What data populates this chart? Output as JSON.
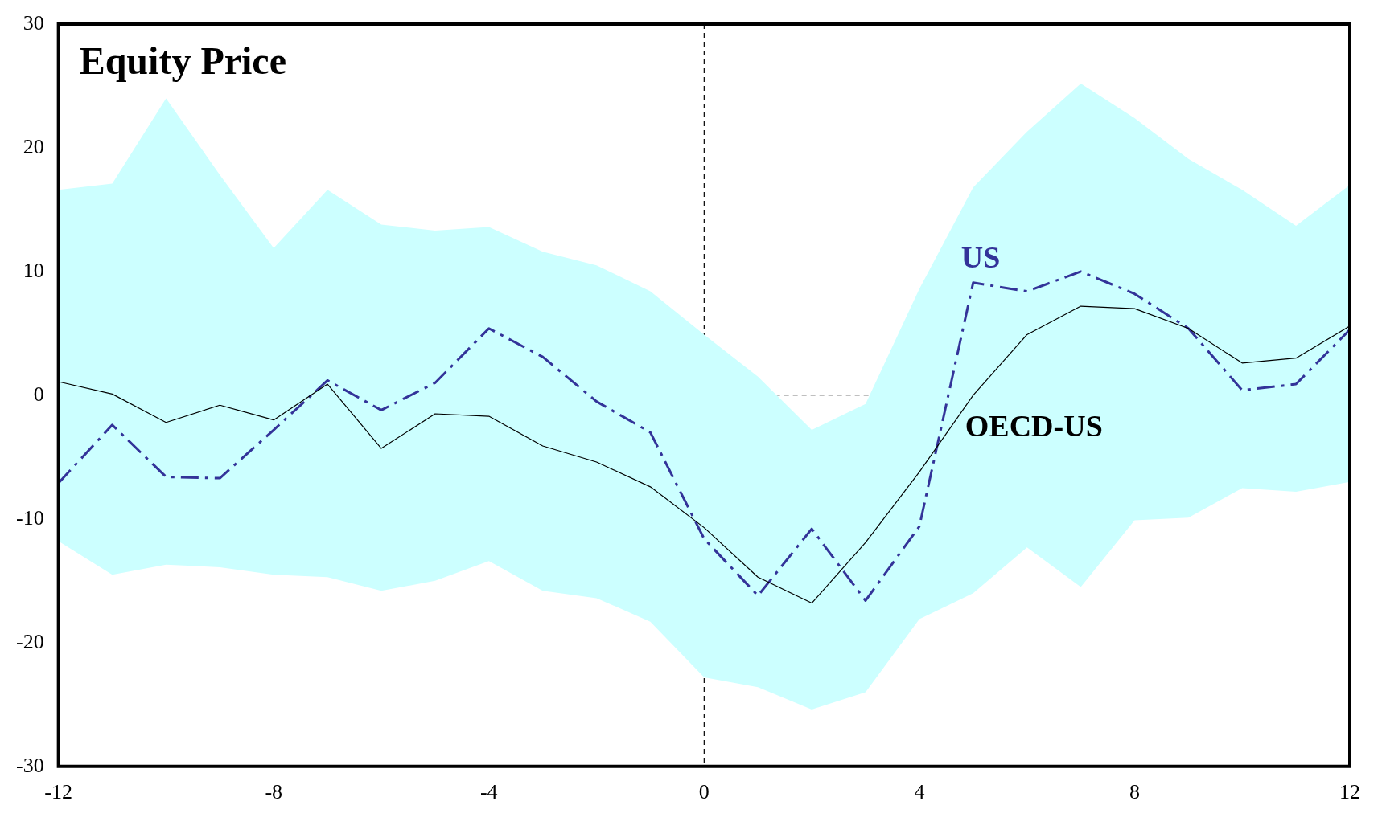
{
  "chart_data": {
    "type": "line",
    "title": "Equity Price",
    "x": [
      -12,
      -11,
      -10,
      -9,
      -8,
      -7,
      -6,
      -5,
      -4,
      -3,
      -2,
      -1,
      0,
      1,
      2,
      3,
      4,
      5,
      6,
      7,
      8,
      9,
      10,
      11,
      12
    ],
    "series": [
      {
        "name": "OECD-US",
        "color": "#000000",
        "line_style": "solid",
        "values": [
          1.1,
          0.1,
          -2.2,
          -0.8,
          -2,
          0.9,
          -4.3,
          -1.5,
          -1.7,
          -4.1,
          -5.4,
          -7.4,
          -10.7,
          -14.7,
          -16.8,
          -11.9,
          -6.2,
          0,
          4.9,
          7.2,
          7,
          5.4,
          2.6,
          3,
          5.6
        ],
        "upper": [
          16.6,
          17.1,
          24,
          17.8,
          11.9,
          16.6,
          13.8,
          13.3,
          13.6,
          11.6,
          10.5,
          8.4,
          4.9,
          1.5,
          -2.8,
          -0.7,
          8.6,
          16.8,
          21.3,
          25.2,
          22.4,
          19.1,
          16.6,
          13.7,
          17
        ],
        "lower": [
          -11.8,
          -14.5,
          -13.7,
          -13.9,
          -14.5,
          -14.7,
          -15.8,
          -15,
          -13.4,
          -15.8,
          -16.4,
          -18.3,
          -22.8,
          -23.6,
          -25.4,
          -24,
          -18.1,
          -16,
          -12.3,
          -15.5,
          -10.1,
          -9.9,
          -7.5,
          -7.8,
          -7
        ]
      },
      {
        "name": "US",
        "color": "#333399",
        "line_style": "dashed",
        "values": [
          -7.1,
          -2.4,
          -6.6,
          -6.7,
          -2.8,
          1.2,
          -1.2,
          1,
          5.4,
          3.1,
          -0.5,
          -3,
          -11.6,
          -16.2,
          -10.8,
          -16.6,
          -10.6,
          9.1,
          8.4,
          10,
          8.2,
          5.4,
          0.4,
          0.9,
          5.3
        ]
      }
    ],
    "xlim": [
      -12,
      12
    ],
    "xticks": [
      -12,
      -8,
      -4,
      0,
      4,
      8,
      12
    ],
    "ylim": [
      -30,
      30
    ],
    "yticks": [
      -30,
      -20,
      -10,
      0,
      10,
      20,
      30
    ],
    "ref_lines": [
      {
        "axis": "x",
        "value": 0,
        "color": "#000000",
        "line_style": "dashed"
      },
      {
        "axis": "y",
        "value": 0,
        "color": "#808080",
        "line_style": "dashed"
      }
    ],
    "grid": false,
    "legend": false,
    "marker": "none"
  }
}
